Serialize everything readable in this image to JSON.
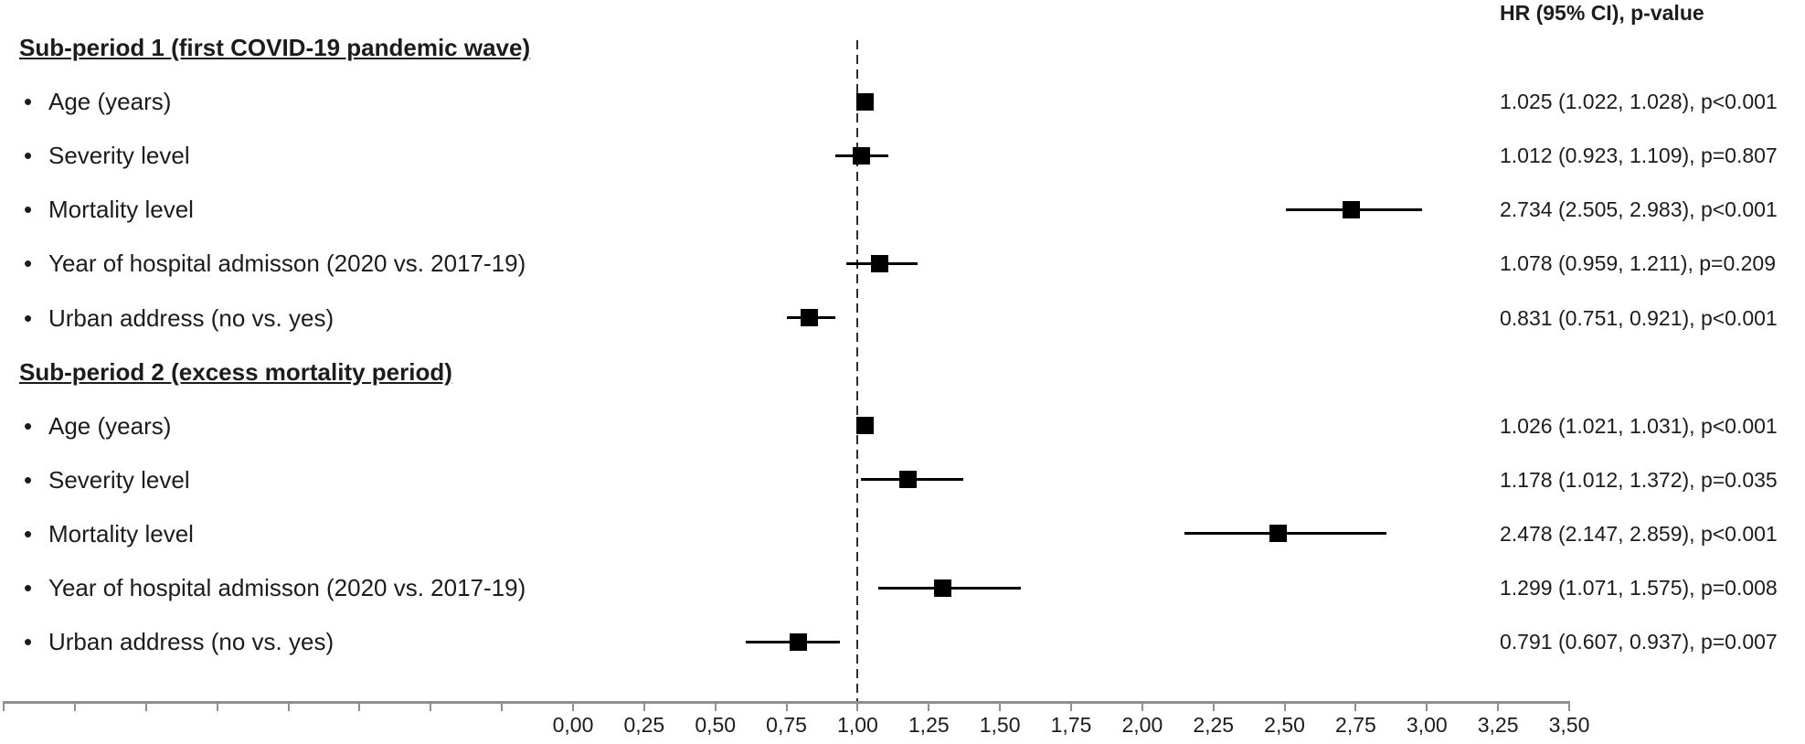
{
  "header": {
    "results_col_label": "HR (95% CI), p-value"
  },
  "bullet_glyph": "•",
  "colors": {
    "marker": "#000000",
    "ci_line": "#000000",
    "axis": "#8f8f8f",
    "reference_line": "#2e2e2e",
    "text": "#1c1c1c",
    "background": "#ffffff"
  },
  "chart_data": {
    "type": "forest",
    "title": "",
    "xlabel": "",
    "ylabel": "",
    "results_column_header": "HR (95% CI), p-value",
    "x_axis": {
      "tick_labels": [
        "0,00",
        "0,25",
        "0,50",
        "0,75",
        "1,00",
        "1,25",
        "1,50",
        "1,75",
        "2,00",
        "2,25",
        "2,50",
        "2,75",
        "3,00",
        "3,25",
        "3,50"
      ],
      "tick_values": [
        0.0,
        0.25,
        0.5,
        0.75,
        1.0,
        1.25,
        1.5,
        1.75,
        2.0,
        2.25,
        2.5,
        2.75,
        3.0,
        3.25,
        3.5
      ],
      "labeled_range": [
        0.0,
        3.5
      ],
      "unlabeled_left_ticks": 8,
      "tick_step": 0.25,
      "decimal_separator": ",",
      "grid": false
    },
    "reference_line_value": 1.0,
    "legend": null,
    "groups": [
      {
        "heading": "Sub-period 1 (first COVID-19 pandemic wave)",
        "rows": [
          {
            "label": "Age (years)",
            "hr": 1.025,
            "ci_low": 1.022,
            "ci_high": 1.028,
            "p": "p<0.001",
            "result": "1.025 (1.022, 1.028), p<0.001"
          },
          {
            "label": "Severity level",
            "hr": 1.012,
            "ci_low": 0.923,
            "ci_high": 1.109,
            "p": "p=0.807",
            "result": "1.012 (0.923, 1.109), p=0.807"
          },
          {
            "label": "Mortality level",
            "hr": 2.734,
            "ci_low": 2.505,
            "ci_high": 2.983,
            "p": "p<0.001",
            "result": "2.734 (2.505, 2.983), p<0.001"
          },
          {
            "label": "Year of hospital admisson (2020 vs. 2017-19)",
            "hr": 1.078,
            "ci_low": 0.959,
            "ci_high": 1.211,
            "p": "p=0.209",
            "result": "1.078 (0.959, 1.211), p=0.209"
          },
          {
            "label": "Urban address (no vs. yes)",
            "hr": 0.831,
            "ci_low": 0.751,
            "ci_high": 0.921,
            "p": "p<0.001",
            "result": "0.831 (0.751, 0.921), p<0.001"
          }
        ]
      },
      {
        "heading": "Sub-period 2 (excess mortality period)",
        "rows": [
          {
            "label": "Age (years)",
            "hr": 1.026,
            "ci_low": 1.021,
            "ci_high": 1.031,
            "p": "p<0.001",
            "result": "1.026 (1.021, 1.031), p<0.001"
          },
          {
            "label": "Severity level",
            "hr": 1.178,
            "ci_low": 1.012,
            "ci_high": 1.372,
            "p": "p=0.035",
            "result": "1.178 (1.012, 1.372), p=0.035"
          },
          {
            "label": "Mortality level",
            "hr": 2.478,
            "ci_low": 2.147,
            "ci_high": 2.859,
            "p": "p<0.001",
            "result": "2.478 (2.147, 2.859), p<0.001"
          },
          {
            "label": "Year of hospital admisson (2020 vs. 2017-19)",
            "hr": 1.299,
            "ci_low": 1.071,
            "ci_high": 1.575,
            "p": "p=0.008",
            "result": "1.299 (1.071, 1.575), p=0.008"
          },
          {
            "label": "Urban address (no vs. yes)",
            "hr": 0.791,
            "ci_low": 0.607,
            "ci_high": 0.937,
            "p": "p=0.007",
            "result": "0.791 (0.607, 0.937), p=0.007"
          }
        ]
      }
    ]
  }
}
